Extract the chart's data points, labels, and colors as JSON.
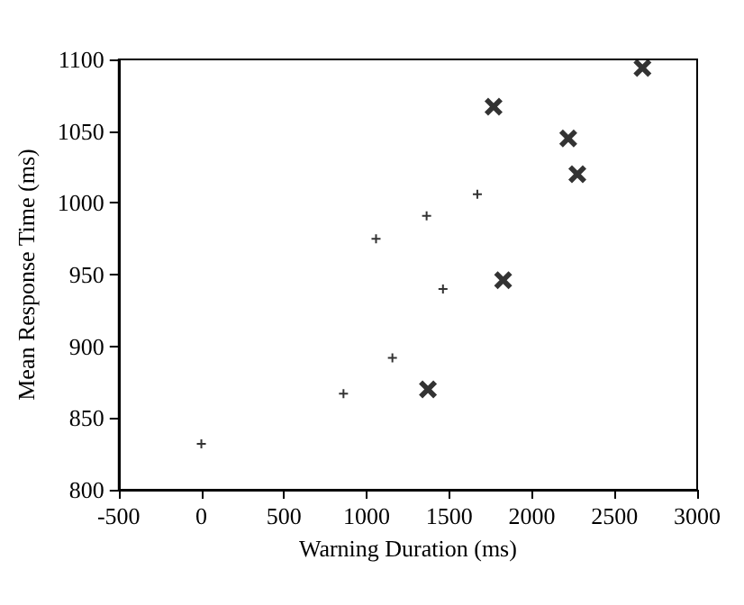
{
  "chart_data": {
    "type": "scatter",
    "xlabel": "Warning Duration (ms)",
    "ylabel": "Mean Response Time (ms)",
    "xlim": [
      -500,
      3000
    ],
    "xticks": [
      -500,
      0,
      500,
      1000,
      1500,
      2000,
      2500,
      3000
    ],
    "ylim": [
      800,
      1100
    ],
    "yticks": [
      800,
      850,
      900,
      950,
      1000,
      1050,
      1100
    ],
    "series": [
      {
        "color": "#000000",
        "marker": "cross",
        "x": [
          0,
          860,
          1057,
          1156,
          1363,
          1462,
          1670
        ],
        "values": [
          832,
          867,
          975,
          892,
          991,
          940,
          1006
        ]
      },
      {
        "color": "#000000",
        "marker": "cross",
        "x": [
          1371,
          1768,
          1826,
          2220,
          2275,
          2669
        ],
        "values": [
          870,
          1067,
          946,
          1045,
          1020,
          1094
        ]
      }
    ]
  }
}
